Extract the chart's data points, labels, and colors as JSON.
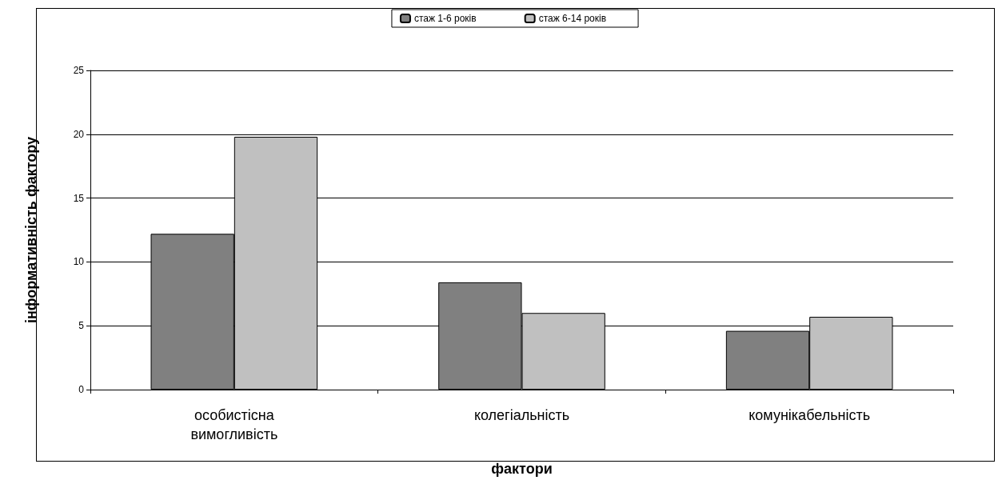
{
  "chart_data": {
    "type": "bar",
    "xlabel": "фактори",
    "ylabel": "інформативність фактору",
    "categories": [
      "особистісна вимогливість",
      "колегіальність",
      "комунікабельність"
    ],
    "series": [
      {
        "name": "стаж 1-6 років",
        "color": "#808080",
        "values": [
          12.2,
          8.4,
          4.6
        ]
      },
      {
        "name": "стаж 6-14 років",
        "color": "#c0c0c0",
        "values": [
          19.8,
          6.0,
          5.7
        ]
      }
    ],
    "ylim": [
      0,
      25
    ],
    "yticks": [
      0,
      5,
      10,
      15,
      20,
      25
    ],
    "grid": "y",
    "legend": "top"
  }
}
